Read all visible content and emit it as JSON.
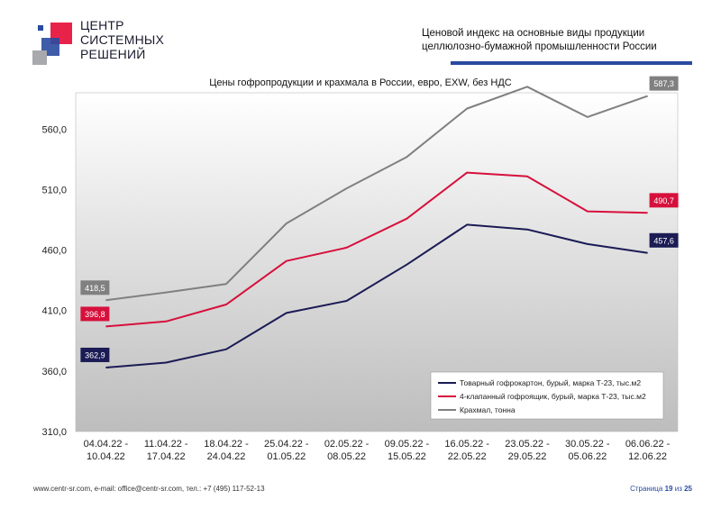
{
  "header": {
    "logo_lines": [
      "ЦЕНТР",
      "СИСТЕМНЫХ",
      "РЕШЕНИЙ"
    ],
    "title_line1": "Ценовой индекс на основные виды продукции",
    "title_line2": "целлюлозно-бумажной промышленности России"
  },
  "colors": {
    "accent": "#2a4aa0",
    "logo_red": "#e8234a",
    "logo_blue": "#2a4aa0",
    "logo_gray": "#a7a9ac"
  },
  "footer": {
    "contacts": "www.centr-sr.com, e-mail: office@centr-sr.com, тел.: +7 (495) 117-52-13",
    "page_word": "Страница",
    "page_number": "19",
    "of_word": "из",
    "page_total": "25"
  },
  "chart_data": {
    "type": "line",
    "title": "Цены гофропродукции и крахмала в России, евро, EXW, без НДС",
    "categories": [
      [
        "04.04.22 -",
        "10.04.22"
      ],
      [
        "11.04.22 -",
        "17.04.22"
      ],
      [
        "18.04.22 -",
        "24.04.22"
      ],
      [
        "25.04.22 -",
        "01.05.22"
      ],
      [
        "02.05.22 -",
        "08.05.22"
      ],
      [
        "09.05.22 -",
        "15.05.22"
      ],
      [
        "16.05.22 -",
        "22.05.22"
      ],
      [
        "23.05.22 -",
        "29.05.22"
      ],
      [
        "30.05.22 -",
        "05.06.22"
      ],
      [
        "06.06.22 -",
        "12.06.22"
      ]
    ],
    "ylim": [
      310,
      590
    ],
    "yticks": [
      310,
      360,
      410,
      460,
      510,
      560
    ],
    "ytick_labels": [
      "310,0",
      "360,0",
      "410,0",
      "460,0",
      "510,0",
      "560,0"
    ],
    "grid": false,
    "legend_position": "bottom-right",
    "series": [
      {
        "name": "Товарный гофрокартон, бурый, марка Т-23, тыс.м2",
        "color": "#1b1b55",
        "values": [
          362.9,
          367,
          378,
          408,
          418,
          448,
          481,
          477,
          465,
          457.6
        ],
        "first_label": "362,9",
        "last_label": "457,6"
      },
      {
        "name": "4-клапанный гофроящик, бурый, марка Т-23, тыс.м2",
        "color": "#d6103c",
        "values": [
          396.8,
          401,
          415,
          451,
          462,
          486,
          524,
          521,
          492,
          490.7
        ],
        "first_label": "396,8",
        "last_label": "490,7"
      },
      {
        "name": "Крахмал, тонна",
        "color": "#808080",
        "values": [
          418.5,
          425,
          432,
          482,
          511,
          537,
          577,
          595,
          570,
          587.3
        ],
        "first_label": "418,5",
        "last_label": "587,3"
      }
    ]
  }
}
